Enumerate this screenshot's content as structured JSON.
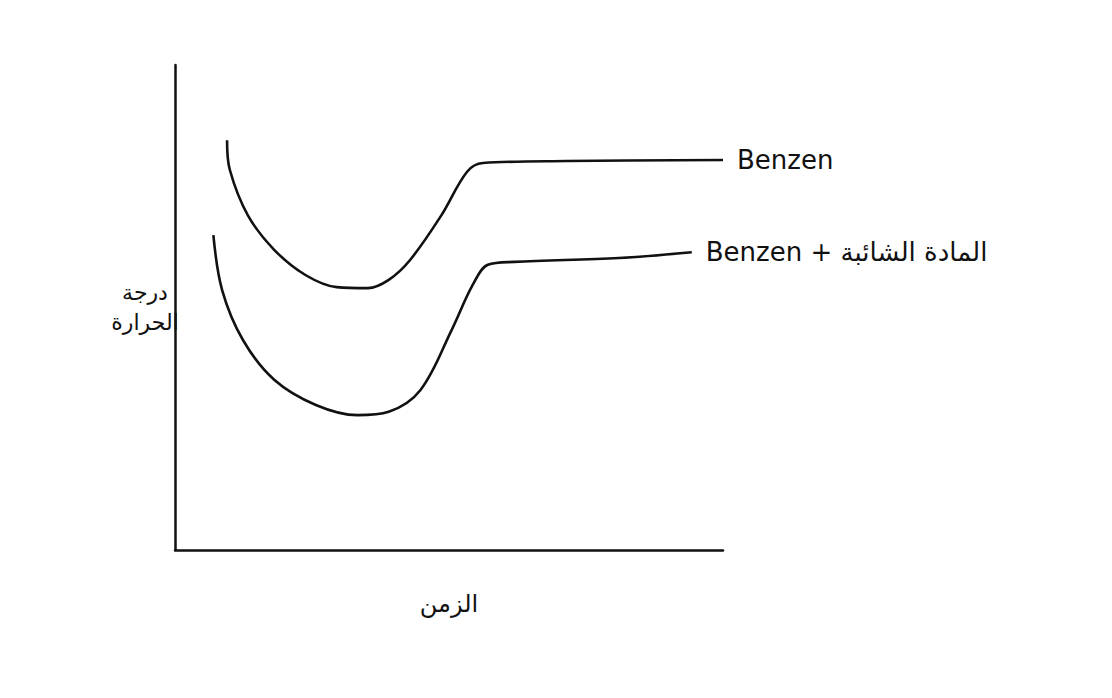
{
  "chart_data": {
    "type": "line",
    "x_label": "الزمن",
    "y_label": "درجة الحرارة",
    "xlim": [
      0,
      10
    ],
    "ylim": [
      0,
      10
    ],
    "tick_labels": false,
    "grid": false,
    "series": [
      {
        "name": "Benzen",
        "color": "#111111",
        "x": [
          0.95,
          1.0,
          1.33,
          1.81,
          2.38,
          2.95,
          3.52,
          3.9,
          4.29,
          4.86,
          5.33,
          5.62,
          7.14,
          10
        ],
        "values": [
          8.45,
          7.84,
          6.9,
          6.19,
          5.67,
          5.42,
          5.4,
          5.57,
          5.98,
          6.9,
          7.8,
          7.98,
          8.02,
          8.04
        ]
      },
      {
        "name": "Benzen + المادة الشائبة",
        "color": "#111111",
        "x": [
          0.7,
          0.86,
          1.24,
          1.81,
          2.57,
          3.33,
          3.9,
          4.48,
          5.05,
          5.43,
          5.71,
          6.19,
          8.1,
          9.43
        ],
        "values": [
          6.49,
          5.36,
          4.33,
          3.51,
          2.99,
          2.78,
          2.85,
          3.3,
          4.54,
          5.46,
          5.88,
          5.94,
          6.02,
          6.14
        ]
      }
    ]
  }
}
